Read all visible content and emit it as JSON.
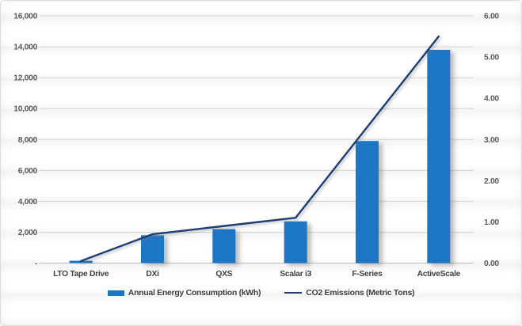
{
  "chart_data": {
    "type": "combo",
    "categories": [
      "LTO Tape Drive",
      "DXi",
      "QXS",
      "Scalar i3",
      "F-Series",
      "ActiveScale"
    ],
    "series": [
      {
        "name": "Annual Energy Consumption (kWh)",
        "chart": "bar",
        "axis": "left",
        "color": "#1a75c5",
        "values": [
          150,
          1800,
          2200,
          2700,
          7900,
          13800
        ]
      },
      {
        "name": "CO2 Emissions (Metric Tons)",
        "chart": "line",
        "axis": "right",
        "color": "#1e3c72",
        "values": [
          0.05,
          0.7,
          0.9,
          1.1,
          3.3,
          5.5
        ]
      }
    ],
    "left_axis": {
      "min": 0,
      "max": 16000,
      "step": 2000,
      "tick_labels": [
        "-",
        "2,000",
        "4,000",
        "6,000",
        "8,000",
        "10,000",
        "12,000",
        "14,000",
        "16,000"
      ]
    },
    "right_axis": {
      "min": 0,
      "max": 6,
      "step": 1,
      "tick_labels": [
        "0.00",
        "1.00",
        "2.00",
        "3.00",
        "4.00",
        "5.00",
        "6.00"
      ]
    },
    "grid": true,
    "legend_position": "bottom"
  },
  "colors": {
    "bar": "#1a75c5",
    "line": "#1e3c72",
    "gridline": "#d4d4d4",
    "axis_line": "#bdbdbd",
    "tick_text": "#595959",
    "category_text": "#3f3f3f"
  }
}
